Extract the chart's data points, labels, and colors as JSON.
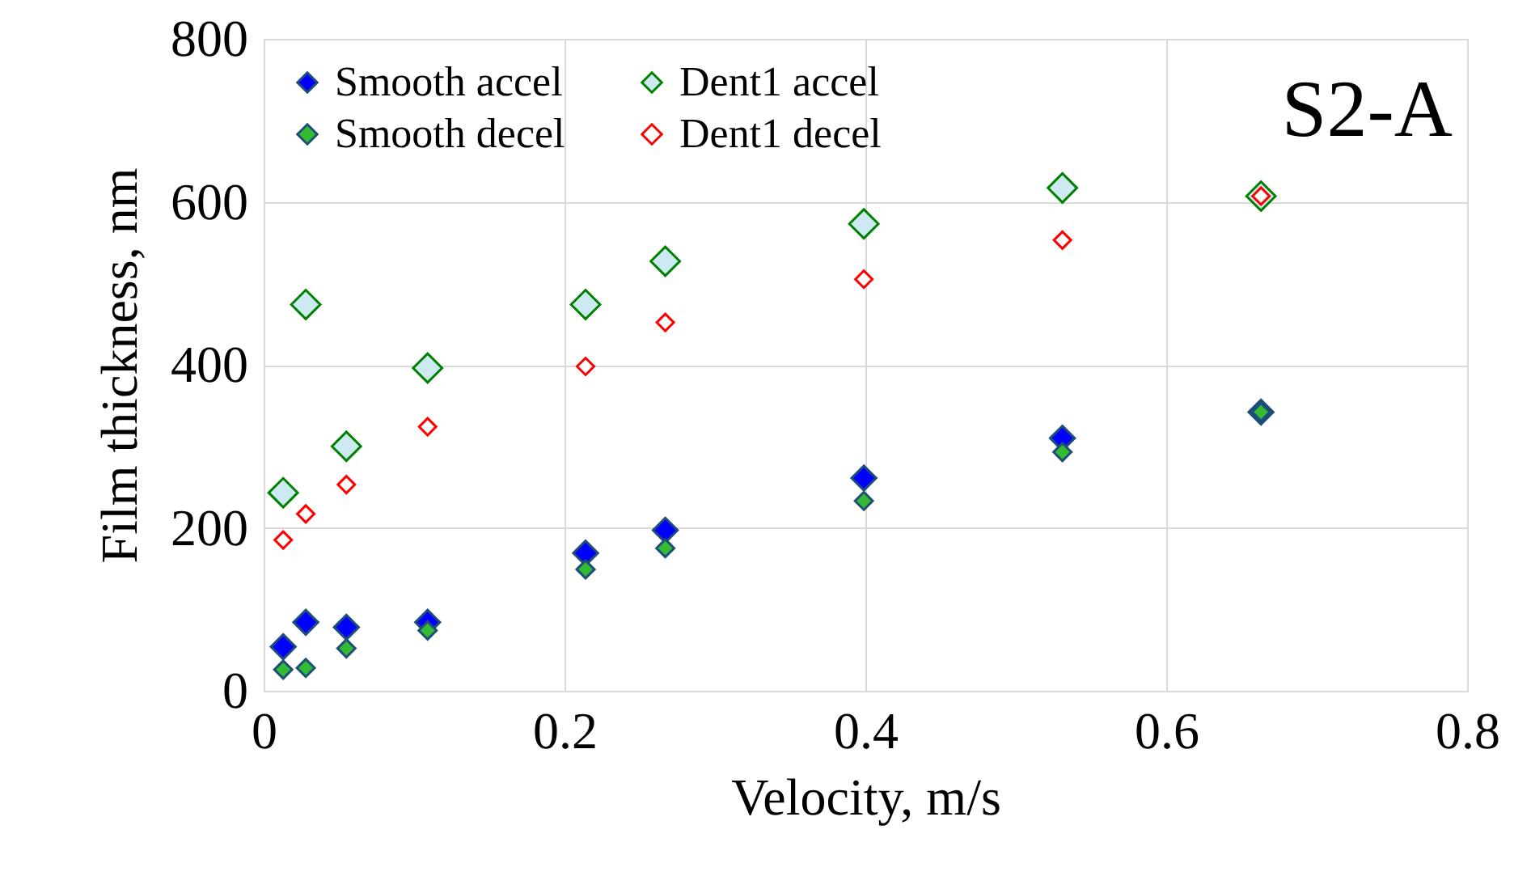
{
  "chart_data": {
    "type": "scatter",
    "xlabel": "Velocity, m/s",
    "ylabel": "Film thickness, nm",
    "annotations": [
      "S2-A"
    ],
    "x": [
      0.013,
      0.028,
      0.055,
      0.109,
      0.214,
      0.267,
      0.399,
      0.531,
      0.663
    ],
    "series": [
      {
        "name": "Smooth accel",
        "color": "#0000ff",
        "values": [
          54,
          84,
          78,
          84,
          169,
          197,
          261,
          310,
          342
        ]
      },
      {
        "name": "Smooth decel",
        "color": "#33bb33",
        "values": [
          26,
          28,
          52,
          74,
          149,
          175,
          233,
          293,
          342
        ]
      },
      {
        "name": "Dent1 accel",
        "color": "#008000",
        "values": [
          243,
          474,
          300,
          396,
          474,
          527,
          573,
          617,
          607
        ]
      },
      {
        "name": "Dent1 decel",
        "color": "#ff0000",
        "values": [
          185,
          217,
          253,
          324,
          398,
          452,
          505,
          553,
          607
        ]
      }
    ],
    "xlim": [
      0,
      0.8
    ],
    "xticks": [
      0,
      0.2,
      0.4,
      0.6,
      0.8
    ],
    "ylim": [
      0,
      800
    ],
    "yticks": [
      0,
      200,
      400,
      600,
      800
    ],
    "grid": true,
    "legend": "top left",
    "marker": "diamond"
  }
}
